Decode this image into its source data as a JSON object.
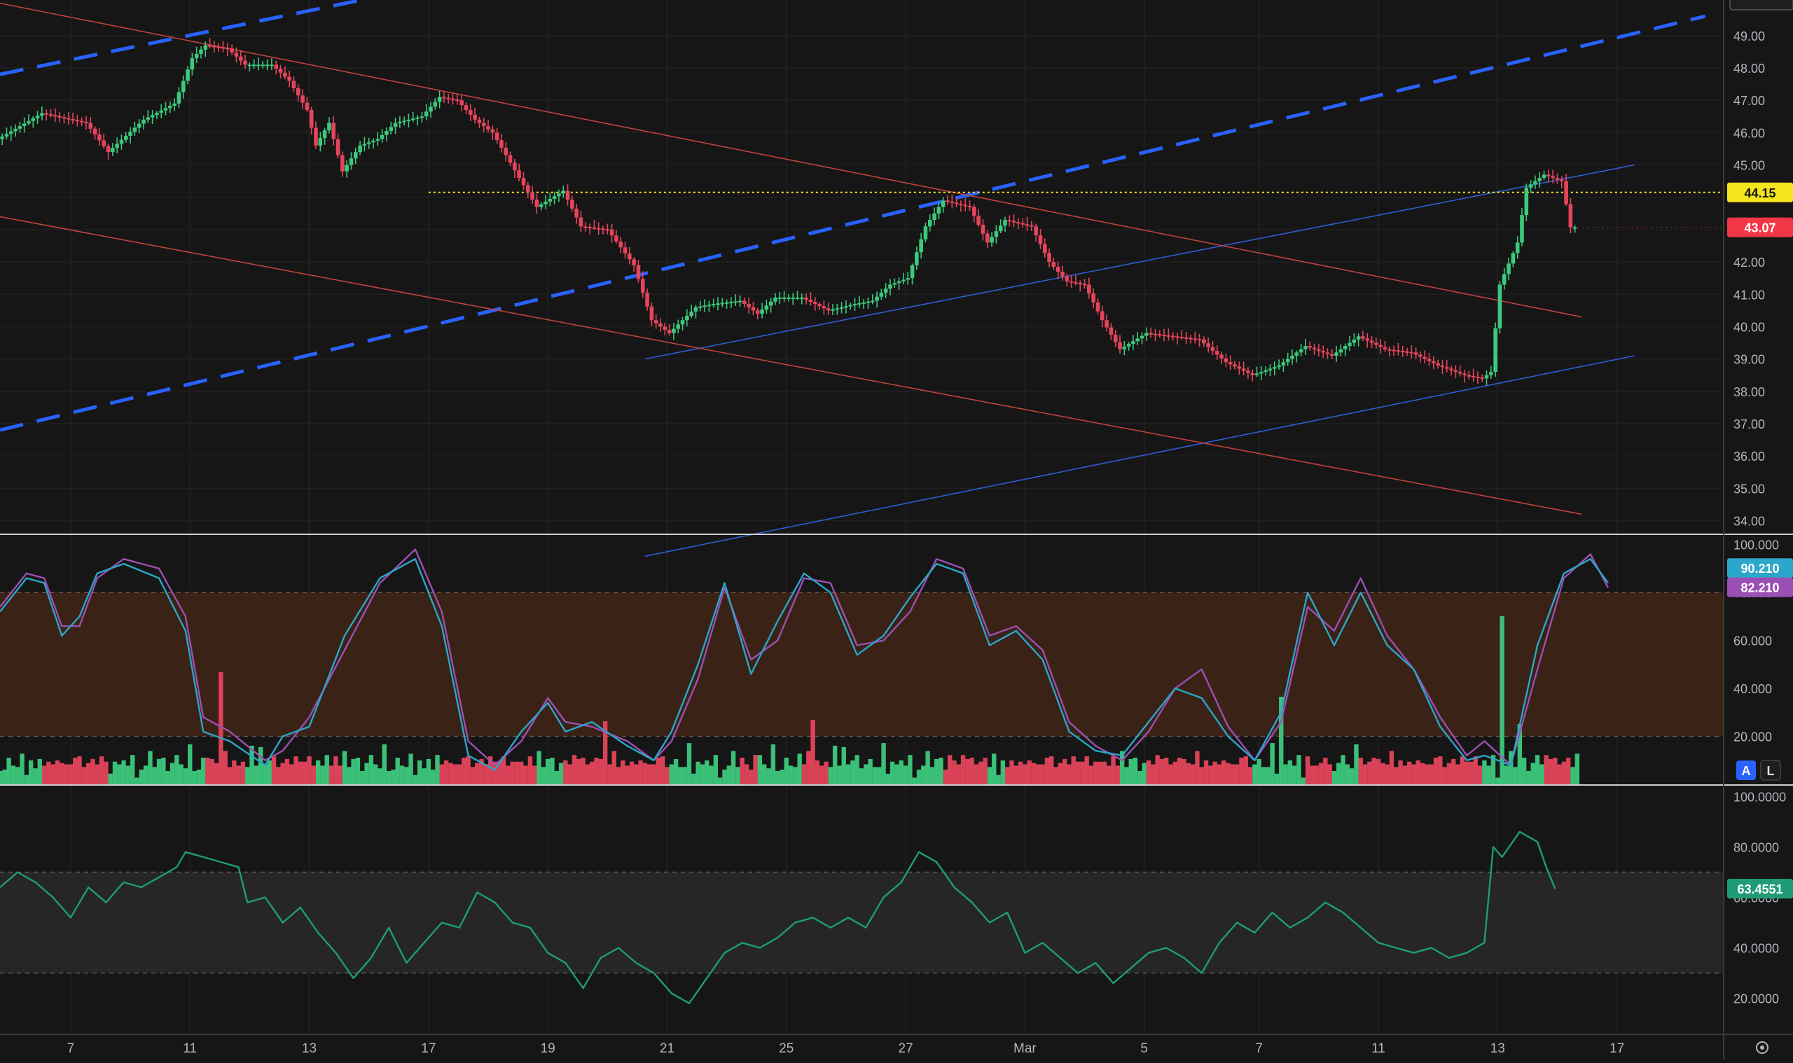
{
  "app": {
    "title": "",
    "colors": {
      "background": "#161616",
      "up": "#26a69a",
      "up_bright": "#3cc97c",
      "down": "#f23645",
      "down_candle": "#e5455c",
      "channel_blue_dashed": "#2962ff",
      "channel_blue_thin": "#2f5cd6",
      "channel_red": "#c2413d",
      "level_yellow": "#f5e51f",
      "stoch_k": "#2aa7c9",
      "stoch_d": "#9c4fb3",
      "rsi_line": "#1f9c75",
      "band_orange": "#3a2217",
      "band_grey": "#262626",
      "axis_text": "#b2b5be"
    }
  },
  "price_axis": {
    "labels": [
      "49.00",
      "48.00",
      "47.00",
      "46.00",
      "45.00",
      "44.00",
      "43.00",
      "42.00",
      "41.00",
      "40.00",
      "39.00",
      "38.00",
      "37.00",
      "36.00",
      "35.00",
      "34.00"
    ]
  },
  "price_badges": {
    "horizontal_level": "44.15",
    "last_price": "43.07"
  },
  "stoch_axis": {
    "labels": [
      "100.000",
      "80.000",
      "60.000",
      "40.000",
      "20.000"
    ],
    "badge_k": "90.210",
    "badge_d": "82.210"
  },
  "rsi_axis": {
    "labels": [
      "100.0000",
      "80.0000",
      "60.0000",
      "40.0000",
      "20.0000"
    ],
    "badge": "63.4551"
  },
  "time_axis": {
    "labels": [
      "7",
      "11",
      "13",
      "17",
      "19",
      "21",
      "25",
      "27",
      "Mar",
      "5",
      "7",
      "11",
      "13",
      "17"
    ]
  },
  "toolbar": {
    "auto_scale": "A",
    "log_scale": "L"
  },
  "chart_data": [
    {
      "type": "candlestick",
      "ylim": [
        33.6,
        50.1
      ],
      "horizontal_level": 44.15,
      "last_price": 43.07,
      "close_path": [
        [
          0,
          45.8
        ],
        [
          10,
          46.6
        ],
        [
          20,
          46.3
        ],
        [
          25,
          45.4
        ],
        [
          33,
          46.4
        ],
        [
          40,
          46.9
        ],
        [
          42,
          47.6
        ],
        [
          44,
          48.3
        ],
        [
          47,
          48.7
        ],
        [
          52,
          48.6
        ],
        [
          56,
          48.1
        ],
        [
          62,
          48.1
        ],
        [
          66,
          47.6
        ],
        [
          70,
          46.7
        ],
        [
          72,
          45.6
        ],
        [
          75,
          46.3
        ],
        [
          78,
          44.8
        ],
        [
          82,
          45.6
        ],
        [
          86,
          45.8
        ],
        [
          90,
          46.3
        ],
        [
          96,
          46.5
        ],
        [
          100,
          47.1
        ],
        [
          104,
          47.0
        ],
        [
          108,
          46.4
        ],
        [
          112,
          46.0
        ],
        [
          118,
          44.6
        ],
        [
          122,
          43.7
        ],
        [
          128,
          44.2
        ],
        [
          132,
          43.1
        ],
        [
          138,
          43.0
        ],
        [
          144,
          41.9
        ],
        [
          148,
          40.2
        ],
        [
          152,
          39.8
        ],
        [
          158,
          40.6
        ],
        [
          162,
          40.7
        ],
        [
          168,
          40.8
        ],
        [
          172,
          40.4
        ],
        [
          176,
          40.9
        ],
        [
          182,
          40.9
        ],
        [
          188,
          40.5
        ],
        [
          194,
          40.7
        ],
        [
          198,
          40.8
        ],
        [
          202,
          41.3
        ],
        [
          206,
          41.5
        ],
        [
          210,
          43.1
        ],
        [
          214,
          43.9
        ],
        [
          220,
          43.7
        ],
        [
          224,
          42.6
        ],
        [
          228,
          43.3
        ],
        [
          234,
          43.1
        ],
        [
          238,
          42.0
        ],
        [
          242,
          41.4
        ],
        [
          246,
          41.3
        ],
        [
          250,
          40.2
        ],
        [
          254,
          39.3
        ],
        [
          260,
          39.8
        ],
        [
          266,
          39.7
        ],
        [
          272,
          39.6
        ],
        [
          278,
          38.9
        ],
        [
          284,
          38.5
        ],
        [
          290,
          38.8
        ],
        [
          296,
          39.4
        ],
        [
          302,
          39.1
        ],
        [
          308,
          39.7
        ],
        [
          314,
          39.3
        ],
        [
          320,
          39.2
        ],
        [
          326,
          38.8
        ],
        [
          332,
          38.5
        ],
        [
          336,
          38.4
        ],
        [
          338,
          38.6
        ],
        [
          340,
          41.3
        ],
        [
          344,
          42.6
        ],
        [
          346,
          44.3
        ],
        [
          350,
          44.7
        ],
        [
          354,
          44.5
        ],
        [
          356,
          43.07
        ]
      ],
      "channels": [
        {
          "name": "",
          "style": "dashed",
          "points": [
            [
              0,
              47.8
            ],
            [
              96,
              50.5
            ]
          ]
        },
        {
          "name": "",
          "style": "dashed",
          "points": [
            [
              0,
              36.8
            ],
            [
              386,
              49.6
            ]
          ]
        },
        {
          "name": "",
          "style": "thin",
          "points": [
            [
              146,
              39.0
            ],
            [
              370,
              45.0
            ]
          ]
        },
        {
          "name": "",
          "style": "thin",
          "points": [
            [
              146,
              32.9
            ],
            [
              370,
              39.1
            ]
          ]
        },
        {
          "name": "",
          "style": "thin-red",
          "points": [
            [
              0,
              50.0
            ],
            [
              358,
              40.3
            ]
          ]
        },
        {
          "name": "",
          "style": "thin-red",
          "points": [
            [
              0,
              43.4
            ],
            [
              358,
              34.2
            ]
          ]
        }
      ]
    },
    {
      "type": "line",
      "ylim": [
        0,
        104
      ],
      "bands": [
        20,
        80
      ],
      "k_last": 90.21,
      "d_last": 82.21,
      "k_path": [
        [
          0,
          72
        ],
        [
          6,
          86
        ],
        [
          10,
          84
        ],
        [
          14,
          62
        ],
        [
          18,
          70
        ],
        [
          22,
          88
        ],
        [
          28,
          92
        ],
        [
          36,
          86
        ],
        [
          42,
          64
        ],
        [
          46,
          22
        ],
        [
          52,
          18
        ],
        [
          60,
          8
        ],
        [
          64,
          20
        ],
        [
          70,
          24
        ],
        [
          78,
          62
        ],
        [
          86,
          86
        ],
        [
          94,
          94
        ],
        [
          100,
          66
        ],
        [
          106,
          12
        ],
        [
          112,
          6
        ],
        [
          118,
          22
        ],
        [
          124,
          34
        ],
        [
          128,
          22
        ],
        [
          134,
          26
        ],
        [
          142,
          16
        ],
        [
          148,
          10
        ],
        [
          152,
          22
        ],
        [
          158,
          50
        ],
        [
          164,
          84
        ],
        [
          170,
          46
        ],
        [
          176,
          68
        ],
        [
          182,
          88
        ],
        [
          188,
          80
        ],
        [
          194,
          54
        ],
        [
          200,
          62
        ],
        [
          206,
          78
        ],
        [
          212,
          92
        ],
        [
          218,
          88
        ],
        [
          224,
          58
        ],
        [
          230,
          64
        ],
        [
          236,
          52
        ],
        [
          242,
          22
        ],
        [
          248,
          14
        ],
        [
          254,
          12
        ],
        [
          260,
          26
        ],
        [
          266,
          40
        ],
        [
          272,
          36
        ],
        [
          278,
          20
        ],
        [
          284,
          10
        ],
        [
          290,
          30
        ],
        [
          296,
          80
        ],
        [
          302,
          58
        ],
        [
          308,
          80
        ],
        [
          314,
          58
        ],
        [
          320,
          48
        ],
        [
          326,
          24
        ],
        [
          332,
          10
        ],
        [
          336,
          12
        ],
        [
          342,
          8
        ],
        [
          348,
          58
        ],
        [
          354,
          88
        ],
        [
          360,
          94
        ],
        [
          364,
          84
        ]
      ],
      "d_path": [
        [
          0,
          74
        ],
        [
          6,
          88
        ],
        [
          10,
          86
        ],
        [
          14,
          66
        ],
        [
          18,
          66
        ],
        [
          22,
          86
        ],
        [
          28,
          94
        ],
        [
          36,
          90
        ],
        [
          42,
          70
        ],
        [
          46,
          28
        ],
        [
          52,
          22
        ],
        [
          60,
          10
        ],
        [
          64,
          14
        ],
        [
          70,
          28
        ],
        [
          78,
          56
        ],
        [
          86,
          84
        ],
        [
          94,
          98
        ],
        [
          100,
          72
        ],
        [
          106,
          18
        ],
        [
          112,
          8
        ],
        [
          118,
          18
        ],
        [
          124,
          36
        ],
        [
          128,
          26
        ],
        [
          134,
          24
        ],
        [
          142,
          18
        ],
        [
          148,
          10
        ],
        [
          152,
          18
        ],
        [
          158,
          44
        ],
        [
          164,
          82
        ],
        [
          170,
          52
        ],
        [
          176,
          60
        ],
        [
          182,
          86
        ],
        [
          188,
          84
        ],
        [
          194,
          58
        ],
        [
          200,
          60
        ],
        [
          206,
          72
        ],
        [
          212,
          94
        ],
        [
          218,
          90
        ],
        [
          224,
          62
        ],
        [
          230,
          66
        ],
        [
          236,
          56
        ],
        [
          242,
          26
        ],
        [
          248,
          16
        ],
        [
          254,
          10
        ],
        [
          260,
          22
        ],
        [
          266,
          40
        ],
        [
          272,
          48
        ],
        [
          278,
          24
        ],
        [
          284,
          10
        ],
        [
          290,
          26
        ],
        [
          296,
          74
        ],
        [
          302,
          64
        ],
        [
          308,
          86
        ],
        [
          314,
          62
        ],
        [
          320,
          48
        ],
        [
          326,
          28
        ],
        [
          332,
          12
        ],
        [
          336,
          18
        ],
        [
          342,
          8
        ],
        [
          348,
          48
        ],
        [
          354,
          86
        ],
        [
          360,
          96
        ],
        [
          364,
          82
        ]
      ]
    },
    {
      "type": "bar",
      "series": [
        {
          "name": "",
          "values_up": [
            10,
            14,
            16,
            20,
            24,
            20,
            58,
            22,
            36,
            34,
            22,
            30,
            32,
            28,
            28,
            24,
            30,
            40,
            38,
            44,
            56,
            50,
            38,
            36,
            28,
            26,
            30,
            30,
            26,
            22,
            28,
            26,
            26,
            24,
            36,
            38,
            44,
            44,
            46,
            62,
            60,
            44,
            40,
            26
          ]
        },
        {
          "name": "",
          "values_down": [
            28,
            30,
            34,
            40,
            26,
            22,
            36,
            42,
            50,
            42,
            30,
            32,
            44,
            32,
            28,
            26,
            28,
            34,
            38,
            36,
            30,
            28,
            36,
            34,
            40,
            30,
            30,
            30,
            32,
            28,
            34,
            38,
            42,
            44,
            40,
            40,
            34,
            34,
            32,
            34,
            38,
            42,
            30,
            30
          ]
        }
      ]
    },
    {
      "type": "line",
      "ylim": [
        6,
        104
      ],
      "bands": [
        30,
        70
      ],
      "last": 63.4551,
      "path": [
        [
          0,
          64
        ],
        [
          4,
          70
        ],
        [
          8,
          66
        ],
        [
          12,
          60
        ],
        [
          16,
          52
        ],
        [
          20,
          64
        ],
        [
          24,
          58
        ],
        [
          28,
          66
        ],
        [
          32,
          64
        ],
        [
          36,
          68
        ],
        [
          40,
          72
        ],
        [
          42,
          78
        ],
        [
          46,
          76
        ],
        [
          50,
          74
        ],
        [
          54,
          72
        ],
        [
          56,
          58
        ],
        [
          60,
          60
        ],
        [
          64,
          50
        ],
        [
          68,
          56
        ],
        [
          72,
          46
        ],
        [
          76,
          38
        ],
        [
          80,
          28
        ],
        [
          84,
          36
        ],
        [
          88,
          48
        ],
        [
          92,
          34
        ],
        [
          96,
          42
        ],
        [
          100,
          50
        ],
        [
          104,
          48
        ],
        [
          108,
          62
        ],
        [
          112,
          58
        ],
        [
          116,
          50
        ],
        [
          120,
          48
        ],
        [
          124,
          38
        ],
        [
          128,
          34
        ],
        [
          132,
          24
        ],
        [
          136,
          36
        ],
        [
          140,
          40
        ],
        [
          144,
          34
        ],
        [
          148,
          30
        ],
        [
          152,
          22
        ],
        [
          156,
          18
        ],
        [
          160,
          28
        ],
        [
          164,
          38
        ],
        [
          168,
          42
        ],
        [
          172,
          40
        ],
        [
          176,
          44
        ],
        [
          180,
          50
        ],
        [
          184,
          52
        ],
        [
          188,
          48
        ],
        [
          192,
          52
        ],
        [
          196,
          48
        ],
        [
          200,
          60
        ],
        [
          204,
          66
        ],
        [
          208,
          78
        ],
        [
          212,
          74
        ],
        [
          216,
          64
        ],
        [
          220,
          58
        ],
        [
          224,
          50
        ],
        [
          228,
          54
        ],
        [
          232,
          38
        ],
        [
          236,
          42
        ],
        [
          240,
          36
        ],
        [
          244,
          30
        ],
        [
          248,
          34
        ],
        [
          252,
          26
        ],
        [
          256,
          32
        ],
        [
          260,
          38
        ],
        [
          264,
          40
        ],
        [
          268,
          36
        ],
        [
          272,
          30
        ],
        [
          276,
          42
        ],
        [
          280,
          50
        ],
        [
          284,
          46
        ],
        [
          288,
          54
        ],
        [
          292,
          48
        ],
        [
          296,
          52
        ],
        [
          300,
          58
        ],
        [
          304,
          54
        ],
        [
          308,
          48
        ],
        [
          312,
          42
        ],
        [
          316,
          40
        ],
        [
          320,
          38
        ],
        [
          324,
          40
        ],
        [
          328,
          36
        ],
        [
          332,
          38
        ],
        [
          336,
          42
        ],
        [
          338,
          80
        ],
        [
          340,
          76
        ],
        [
          344,
          86
        ],
        [
          348,
          82
        ],
        [
          350,
          72
        ],
        [
          352,
          63.4551
        ]
      ]
    }
  ]
}
